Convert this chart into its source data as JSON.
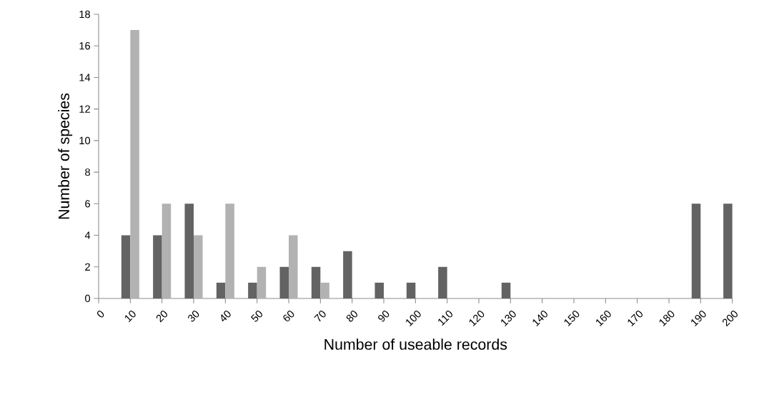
{
  "chart_data": {
    "type": "bar",
    "xlabel": "Number of useable records",
    "ylabel": "Number of species",
    "categories": [
      "0",
      "10",
      "20",
      "30",
      "40",
      "50",
      "60",
      "70",
      "80",
      "90",
      "100",
      "110",
      "120",
      "130",
      "140",
      "150",
      "160",
      "170",
      "180",
      "190",
      "200"
    ],
    "series": [
      {
        "color": "#636363",
        "values": [
          0,
          4,
          4,
          6,
          1,
          1,
          2,
          2,
          3,
          1,
          1,
          2,
          0,
          1,
          0,
          0,
          0,
          0,
          0,
          6,
          6
        ]
      },
      {
        "color": "#b2b2b2",
        "values": [
          0,
          17,
          6,
          4,
          6,
          2,
          4,
          1,
          0,
          0,
          0,
          0,
          0,
          0,
          0,
          0,
          0,
          0,
          0,
          0,
          0
        ]
      }
    ],
    "ylim": [
      0,
      18
    ],
    "yticks": [
      0,
      2,
      4,
      6,
      8,
      10,
      12,
      14,
      16,
      18
    ]
  }
}
